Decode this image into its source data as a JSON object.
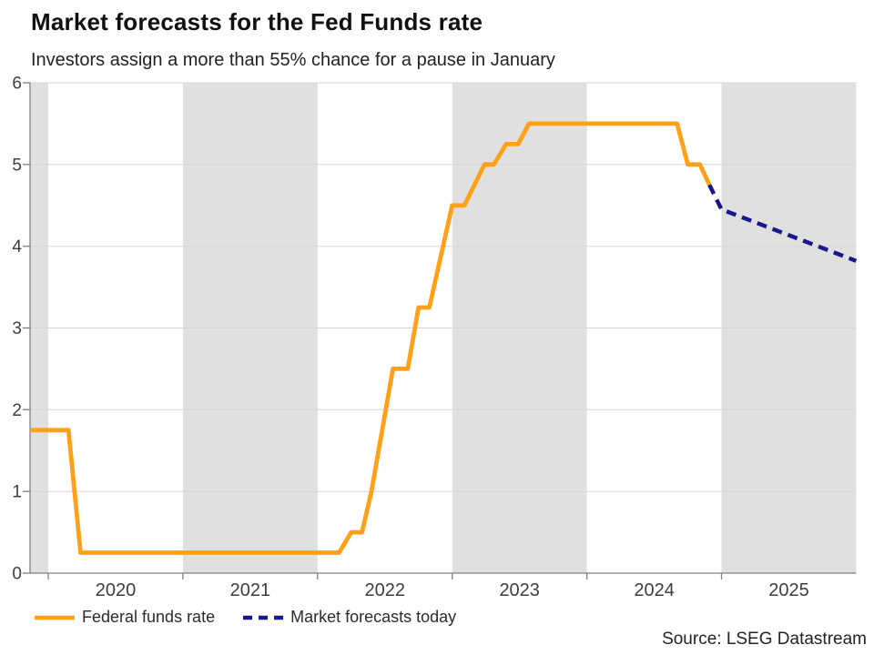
{
  "header": {
    "title": "Market forecasts for the Fed Funds rate",
    "subtitle": "Investors assign a more than 55% chance for a pause in January"
  },
  "source": "Source: LSEG Datastream",
  "colors": {
    "fed_funds": "#FFA019",
    "forecast": "#18188B",
    "band": "#E0E0E0",
    "grid": "#D6D6D6",
    "axis": "#7F7F7F",
    "tick_text": "#3D3D3D"
  },
  "legend": {
    "items": [
      {
        "label": "Federal funds rate",
        "style": "solid"
      },
      {
        "label": "Market forecasts today",
        "style": "dashed"
      }
    ]
  },
  "chart_data": {
    "type": "line",
    "title": "Market forecasts for the Fed Funds rate",
    "subtitle": "Investors assign a more than 55% chance for a pause in January",
    "xlabel": "",
    "ylabel": "",
    "x_axis": {
      "range": [
        2019.865,
        2026.0
      ],
      "ticks": [
        2020,
        2021,
        2022,
        2023,
        2024,
        2025
      ],
      "labels": [
        "2020",
        "2021",
        "2022",
        "2023",
        "2024",
        "2025"
      ]
    },
    "y_axis": {
      "range": [
        0,
        6
      ],
      "ticks": [
        0,
        1,
        2,
        3,
        4,
        5,
        6
      ],
      "labels": [
        "0",
        "1",
        "2",
        "3",
        "4",
        "5",
        "6"
      ]
    },
    "grid": true,
    "legend_position": "bottom-left",
    "shaded_year_bands": [
      [
        2019.865,
        2020.0
      ],
      [
        2021.0,
        2022.0
      ],
      [
        2023.0,
        2024.0
      ],
      [
        2025.0,
        2026.0
      ]
    ],
    "series": [
      {
        "name": "Federal funds rate",
        "style": "solid",
        "color_key": "fed_funds",
        "points": [
          [
            2019.865,
            1.75
          ],
          [
            2020.15,
            1.75
          ],
          [
            2020.24,
            0.25
          ],
          [
            2022.16,
            0.25
          ],
          [
            2022.25,
            0.5
          ],
          [
            2022.33,
            0.5
          ],
          [
            2022.4,
            1.0
          ],
          [
            2022.48,
            1.75
          ],
          [
            2022.56,
            2.5
          ],
          [
            2022.67,
            2.5
          ],
          [
            2022.75,
            3.25
          ],
          [
            2022.83,
            3.25
          ],
          [
            2023.0,
            4.5
          ],
          [
            2023.09,
            4.5
          ],
          [
            2023.24,
            5.0
          ],
          [
            2023.31,
            5.0
          ],
          [
            2023.4,
            5.25
          ],
          [
            2023.49,
            5.25
          ],
          [
            2023.57,
            5.5
          ],
          [
            2024.67,
            5.5
          ],
          [
            2024.75,
            5.0
          ],
          [
            2024.84,
            5.0
          ],
          [
            2024.91,
            4.75
          ]
        ]
      },
      {
        "name": "Market forecasts today",
        "style": "dashed",
        "color_key": "forecast",
        "points": [
          [
            2024.91,
            4.75
          ],
          [
            2025.0,
            4.45
          ],
          [
            2026.0,
            3.82
          ]
        ]
      }
    ]
  }
}
